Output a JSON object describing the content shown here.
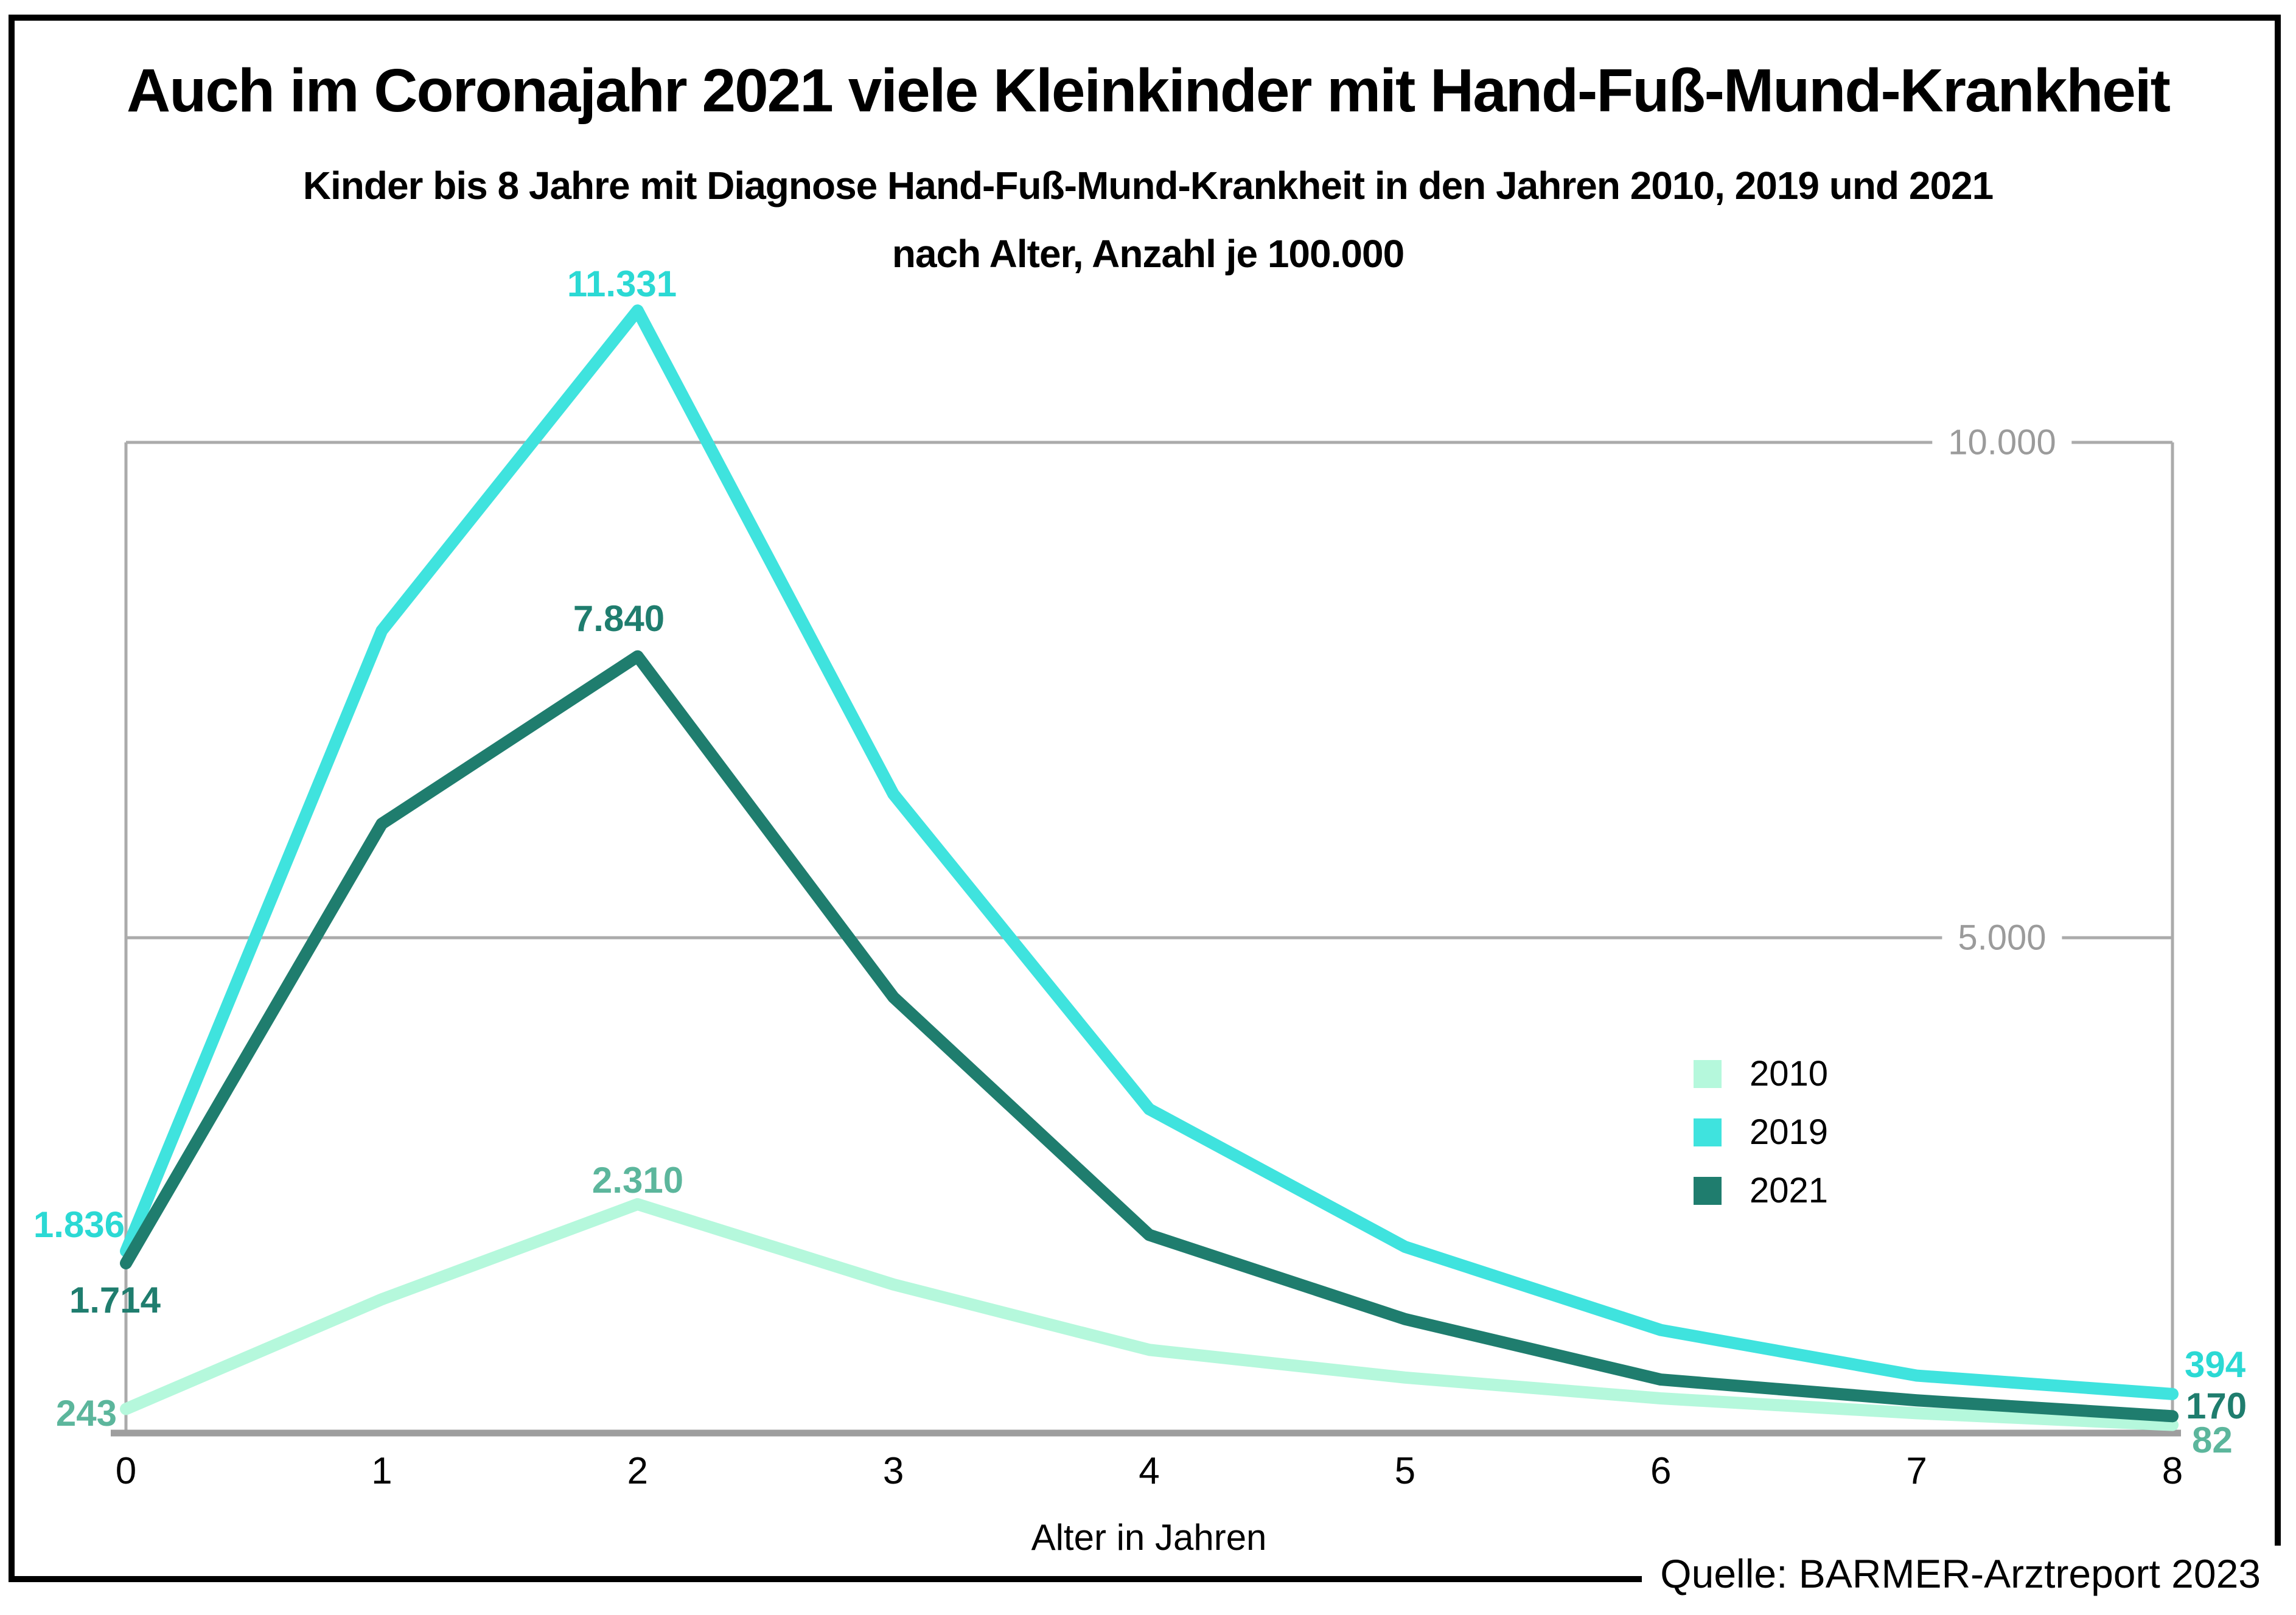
{
  "title": "Auch im Coronajahr 2021 viele Kleinkinder mit Hand-Fuß-Mund-Krankheit",
  "subtitle_line1": "Kinder bis 8 Jahre mit Diagnose Hand-Fuß-Mund-Krankheit in den Jahren 2010, 2019 und 2021",
  "subtitle_line2": "nach Alter, Anzahl je 100.000",
  "source": "Quelle: BARMER-Arztreport 2023",
  "colors": {
    "grid": "#ababab",
    "axis": "#9e9e9e",
    "grid_text": "#9b9b9b",
    "tick_text": "#000000"
  },
  "chart_data": {
    "type": "line",
    "title": "Auch im Coronajahr 2021 viele Kleinkinder mit Hand-Fuß-Mund-Krankheit",
    "subtitle": "Kinder bis 8 Jahre mit Diagnose Hand-Fuß-Mund-Krankheit in den Jahren 2010, 2019 und 2021 nach Alter, Anzahl je 100.000",
    "xlabel": "Alter in Jahren",
    "ylabel": "",
    "x": [
      0,
      1,
      2,
      3,
      4,
      5,
      6,
      7,
      8
    ],
    "x_tick_labels": [
      "0",
      "1",
      "2",
      "3",
      "4",
      "5",
      "6",
      "7",
      "8"
    ],
    "ylim": [
      0,
      12000
    ],
    "grid": "horizontal",
    "legend_position": "middle-right",
    "gridlines": [
      {
        "value": 5000,
        "label": "5.000"
      },
      {
        "value": 10000,
        "label": "10.000"
      }
    ],
    "series": [
      {
        "name": "2010",
        "color": "#b5f8dc",
        "label_color": "#5cb69c",
        "values": [
          243,
          1350,
          2310,
          1500,
          840,
          560,
          350,
          200,
          82
        ]
      },
      {
        "name": "2019",
        "color": "#3fe3de",
        "label_color": "#2bd9d4",
        "values": [
          1836,
          8100,
          11331,
          6450,
          3270,
          1880,
          1040,
          580,
          394
        ]
      },
      {
        "name": "2021",
        "color": "#1f7d6e",
        "label_color": "#1f7d6e",
        "values": [
          1714,
          6150,
          7840,
          4400,
          2000,
          1150,
          540,
          330,
          170
        ]
      }
    ],
    "annotations": {
      "peak_2019": "11.331",
      "peak_2021": "7.840",
      "peak_2010": "2.310",
      "start_2019": "1.836",
      "start_2021": "1.714",
      "start_2010": "243",
      "end_2019": "394",
      "end_2021": "170",
      "end_2010": "82"
    }
  }
}
